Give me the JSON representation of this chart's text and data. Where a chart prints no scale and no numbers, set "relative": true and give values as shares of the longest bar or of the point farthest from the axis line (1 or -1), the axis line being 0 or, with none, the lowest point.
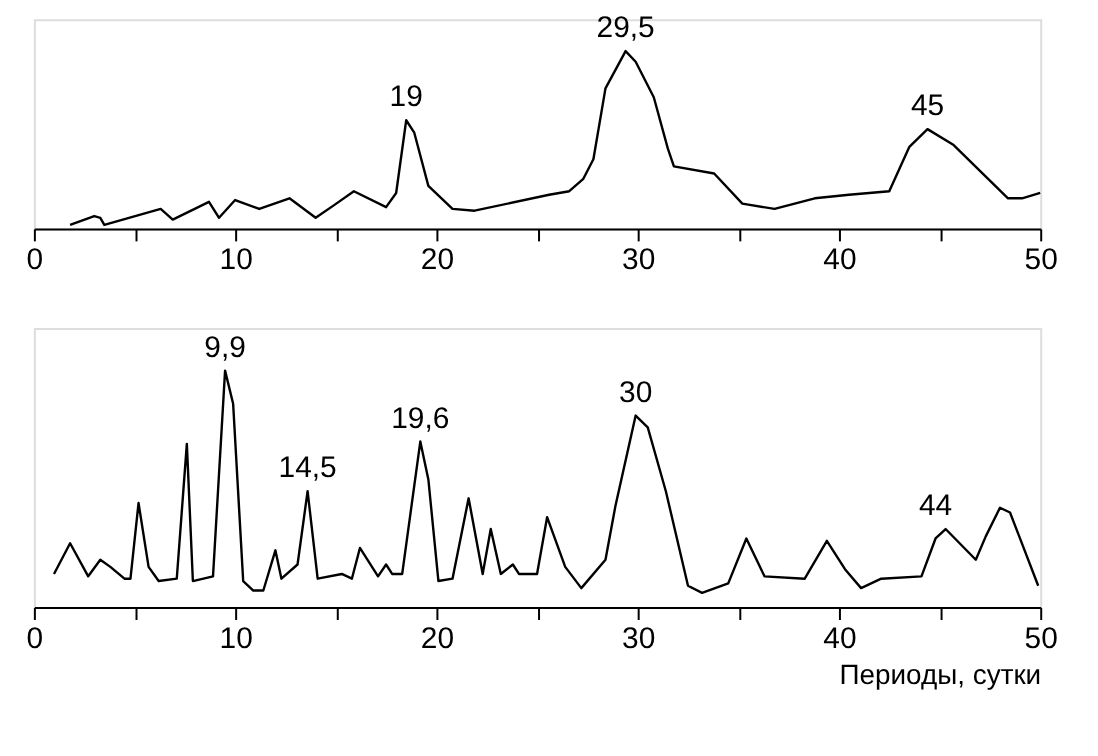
{
  "chart_data": [
    {
      "type": "line",
      "relative": true,
      "grid": false,
      "marker": "none",
      "line_style": "solid",
      "tick_labels": "x",
      "xlim": [
        0,
        50
      ],
      "xticks": [
        0,
        {
          "value": 5,
          "label": null
        },
        10,
        {
          "value": 15,
          "label": null
        },
        20,
        {
          "value": 25,
          "label": null
        },
        30,
        {
          "value": 35,
          "label": null
        },
        40,
        {
          "value": 45,
          "label": null
        },
        50
      ],
      "series": [
        {
          "color": "#000000",
          "x": [
            1.8,
            3.0,
            3.3,
            3.5,
            6.3,
            6.9,
            8.7,
            9.2,
            10.0,
            11.2,
            12.7,
            14.0,
            14.9,
            15.9,
            17.5,
            18.0,
            18.5,
            18.9,
            19.6,
            20.8,
            21.9,
            25.6,
            26.6,
            27.3,
            27.8,
            28.4,
            29.4,
            29.9,
            30.8,
            31.5,
            31.8,
            33.8,
            35.2,
            36.8,
            38.8,
            40.5,
            42.5,
            43.5,
            44.4,
            45.7,
            48.4,
            49.1,
            50.0
          ],
          "values": [
            0.02,
            0.07,
            0.06,
            0.02,
            0.11,
            0.05,
            0.15,
            0.06,
            0.16,
            0.11,
            0.17,
            0.06,
            0.13,
            0.21,
            0.12,
            0.2,
            0.61,
            0.54,
            0.24,
            0.11,
            0.1,
            0.19,
            0.21,
            0.28,
            0.39,
            0.79,
            1.0,
            0.94,
            0.74,
            0.45,
            0.35,
            0.31,
            0.14,
            0.11,
            0.17,
            0.19,
            0.21,
            0.46,
            0.56,
            0.47,
            0.17,
            0.17,
            0.2
          ]
        }
      ],
      "annotations": [
        {
          "text": "19",
          "x": 18.5,
          "y": 0.61
        },
        {
          "text": "29,5",
          "x": 29.4,
          "y": 1.0
        },
        {
          "text": "45",
          "x": 44.4,
          "y": 0.56
        }
      ]
    },
    {
      "type": "line",
      "relative": true,
      "grid": false,
      "marker": "none",
      "line_style": "solid",
      "tick_labels": "x",
      "xlabel": "Периоды, сутки",
      "xlim": [
        0,
        50
      ],
      "xticks": [
        0,
        {
          "value": 5,
          "label": null
        },
        10,
        {
          "value": 15,
          "label": null
        },
        20,
        {
          "value": 25,
          "label": null
        },
        30,
        {
          "value": 35,
          "label": null
        },
        40,
        {
          "value": 45,
          "label": null
        },
        50
      ],
      "series": [
        {
          "color": "#000000",
          "x": [
            1.0,
            1.8,
            2.7,
            3.3,
            3.8,
            4.5,
            4.8,
            5.2,
            5.7,
            6.2,
            7.1,
            7.6,
            7.9,
            8.9,
            9.5,
            9.9,
            10.4,
            10.9,
            11.4,
            12.0,
            12.3,
            13.1,
            13.6,
            14.1,
            15.3,
            15.8,
            16.2,
            17.1,
            17.5,
            17.8,
            18.3,
            19.2,
            19.6,
            20.1,
            20.8,
            21.6,
            22.3,
            22.7,
            23.2,
            23.8,
            24.1,
            25.0,
            25.5,
            26.4,
            27.2,
            28.4,
            28.9,
            29.9,
            30.5,
            31.4,
            32.5,
            33.2,
            34.5,
            35.4,
            36.3,
            38.3,
            39.4,
            40.3,
            41.1,
            42.1,
            44.1,
            44.8,
            45.3,
            46.8,
            47.3,
            48.0,
            48.5,
            49.9
          ],
          "values": [
            0.14,
            0.27,
            0.13,
            0.2,
            0.17,
            0.12,
            0.12,
            0.44,
            0.17,
            0.11,
            0.12,
            0.69,
            0.11,
            0.13,
            1.0,
            0.86,
            0.11,
            0.07,
            0.07,
            0.24,
            0.12,
            0.18,
            0.49,
            0.12,
            0.14,
            0.12,
            0.25,
            0.13,
            0.18,
            0.14,
            0.14,
            0.7,
            0.54,
            0.11,
            0.12,
            0.46,
            0.14,
            0.33,
            0.14,
            0.18,
            0.14,
            0.14,
            0.38,
            0.17,
            0.08,
            0.2,
            0.43,
            0.81,
            0.76,
            0.49,
            0.09,
            0.06,
            0.1,
            0.29,
            0.13,
            0.12,
            0.28,
            0.16,
            0.08,
            0.12,
            0.13,
            0.29,
            0.33,
            0.2,
            0.3,
            0.42,
            0.4,
            0.09
          ]
        }
      ],
      "annotations": [
        {
          "text": "9,9",
          "x": 9.5,
          "y": 1.0
        },
        {
          "text": "14,5",
          "x": 13.6,
          "y": 0.49
        },
        {
          "text": "19,6",
          "x": 19.2,
          "y": 0.7
        },
        {
          "text": "30",
          "x": 29.9,
          "y": 0.81
        },
        {
          "text": "44",
          "x": 44.8,
          "y": 0.33
        }
      ]
    }
  ]
}
